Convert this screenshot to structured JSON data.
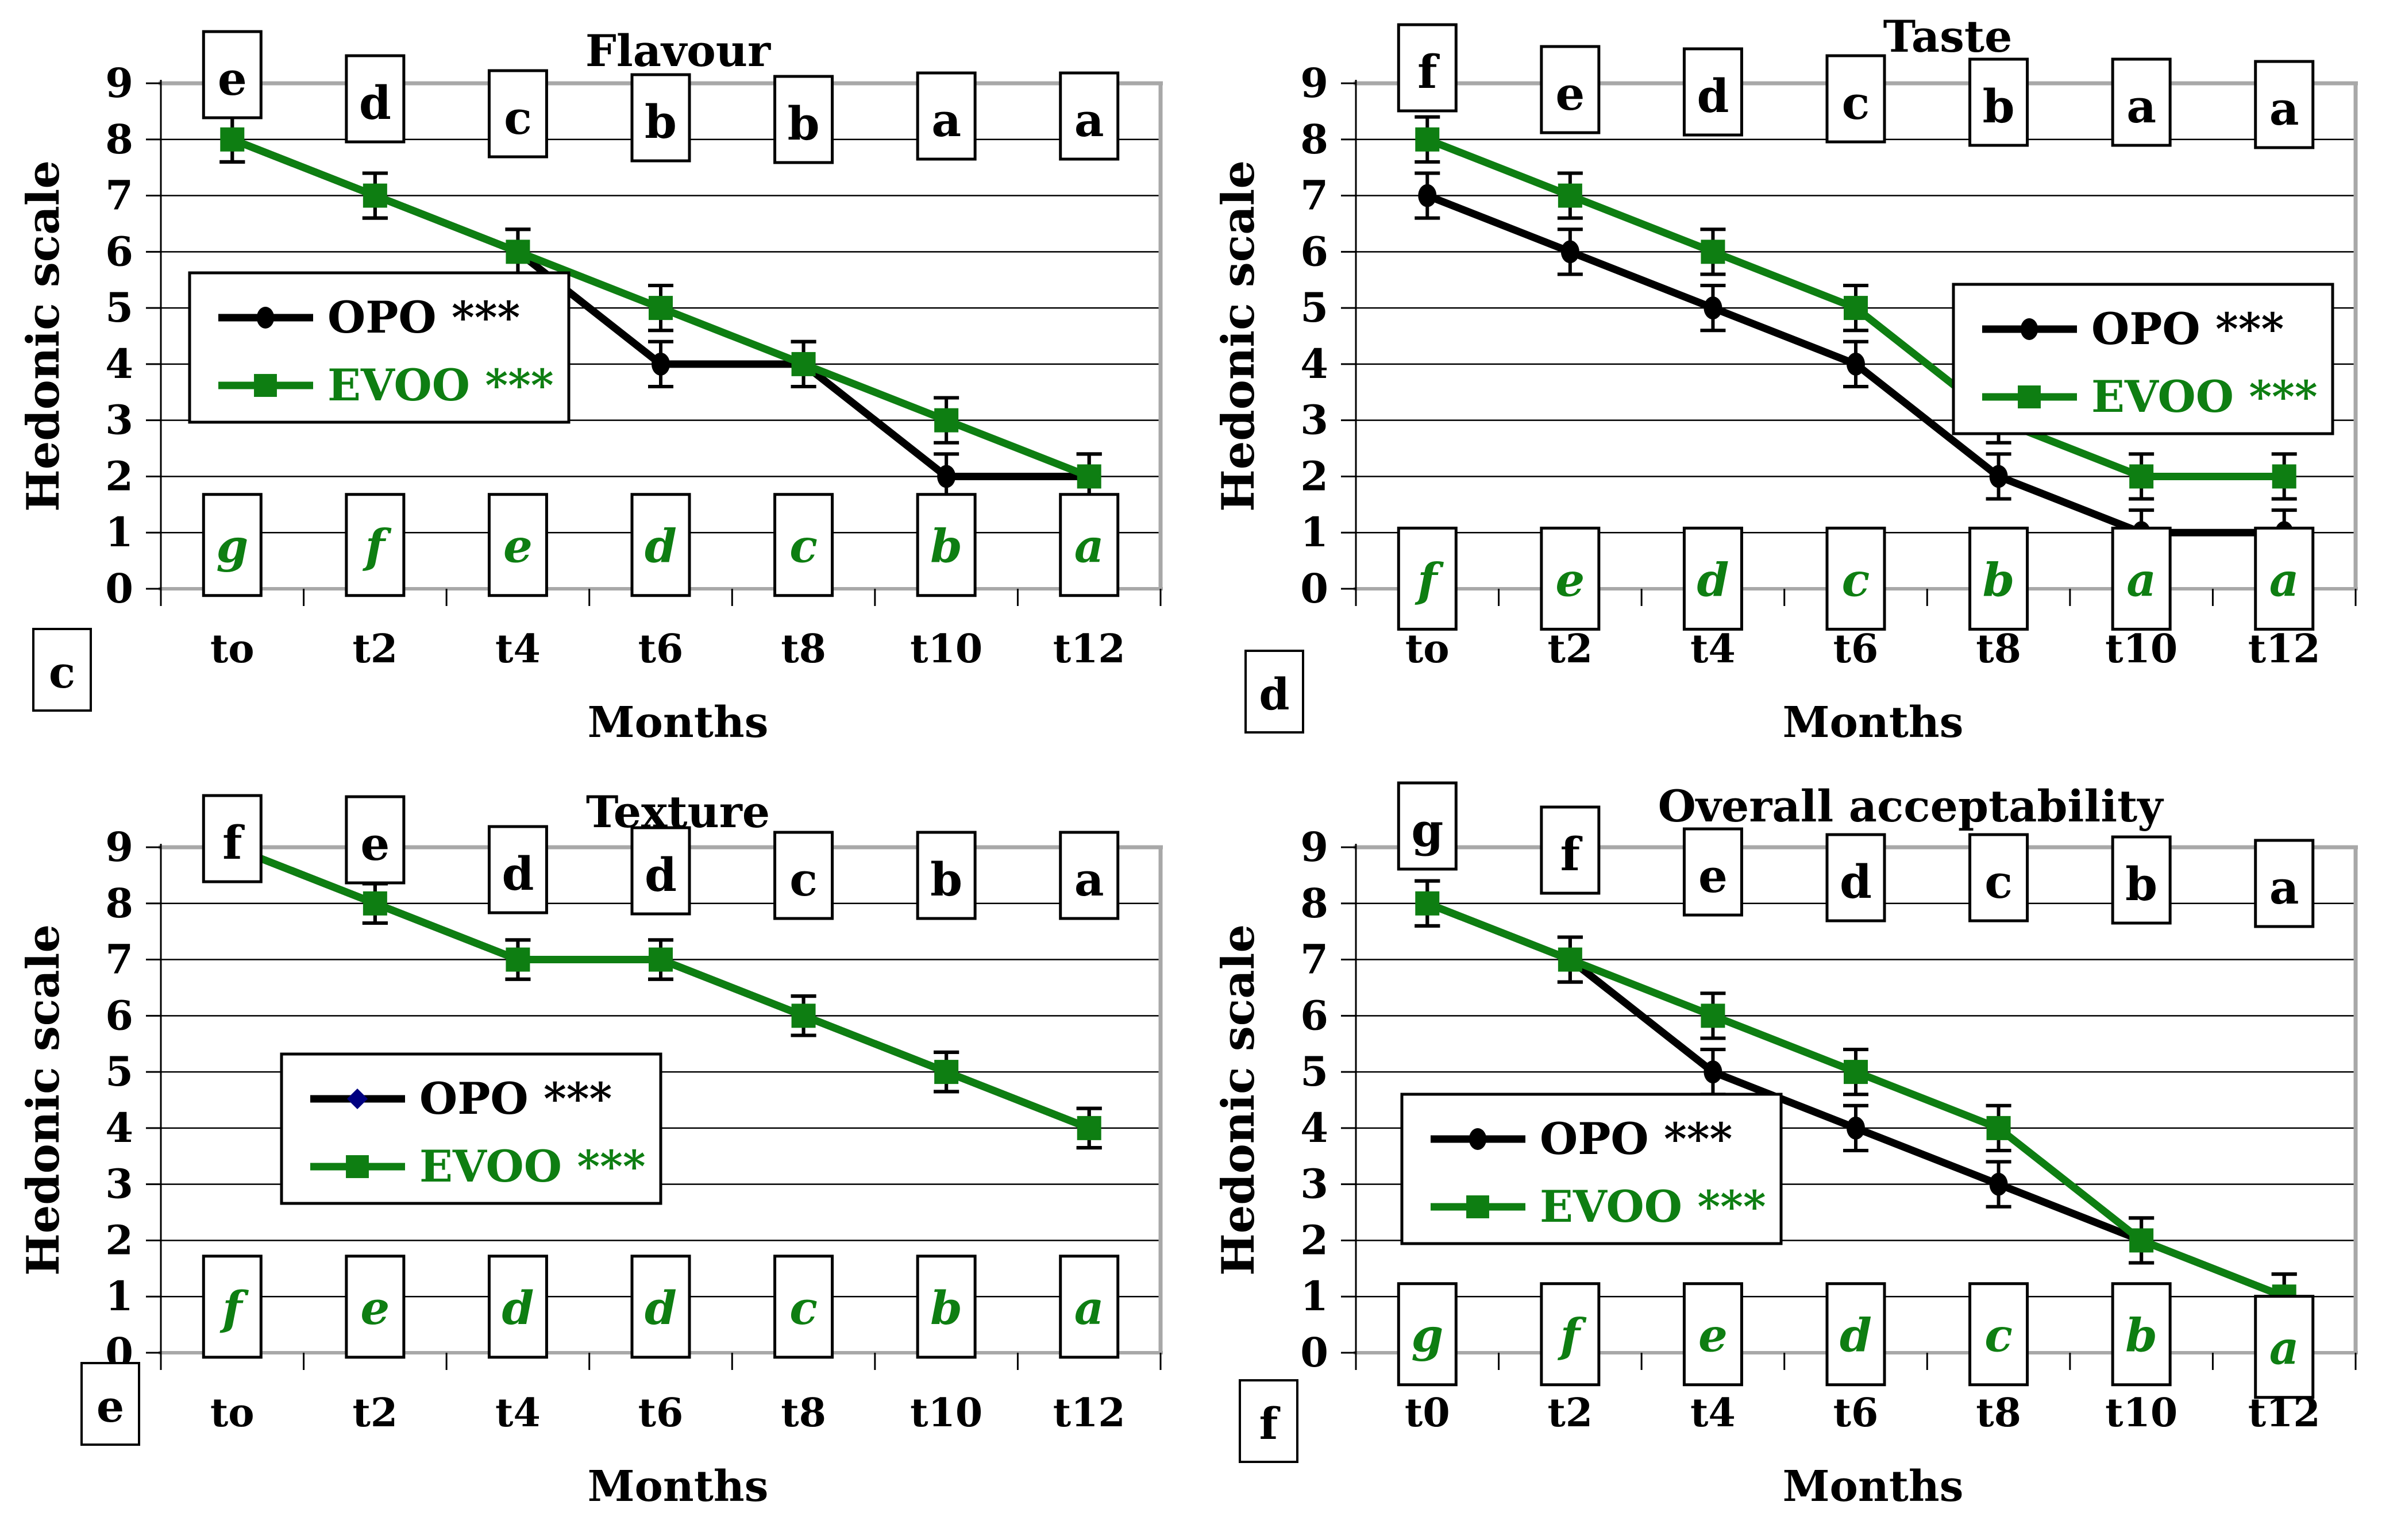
{
  "colors": {
    "background": "#ffffff",
    "opo_line": "#000000",
    "evoo_line": "#0e7e12",
    "texture_opo_marker": "#000080",
    "frame_gray": "#a8a8a8",
    "grid_black": "#000000",
    "letter_green": "#0e7e12"
  },
  "axis_shared": {
    "y_title": "Hedonic scale",
    "x_title": "Months",
    "y_ticks": [
      0,
      1,
      2,
      3,
      4,
      5,
      6,
      7,
      8,
      9
    ],
    "ylim": [
      0,
      9
    ]
  },
  "legend_labels": {
    "opo": "OPO ***",
    "evoo": "EVOO ***"
  },
  "chart_data": [
    {
      "type": "line",
      "panel_label": "c",
      "title": "Flavour",
      "xlabel": "Months",
      "ylabel": "Hedonic scale",
      "ylim": [
        0,
        9
      ],
      "grid": true,
      "categories": [
        "to",
        "t2",
        "t4",
        "t6",
        "t8",
        "t10",
        "t12"
      ],
      "series": [
        {
          "name": "OPO ***",
          "marker": "circle",
          "marker_color": "#000000",
          "line_color": "#000000",
          "values": [
            8,
            7,
            6,
            4,
            4,
            2,
            2
          ]
        },
        {
          "name": "EVOO ***",
          "marker": "square",
          "marker_color": "#0e7e12",
          "line_color": "#0e7e12",
          "values": [
            8,
            7,
            6,
            5,
            4,
            3,
            2
          ]
        }
      ],
      "error_bar": 0.4,
      "top_letters": [
        "e",
        "d",
        "c",
        "b",
        "b",
        "a",
        "a"
      ],
      "bottom_letters": [
        "g",
        "f",
        "e",
        "d",
        "c",
        "b",
        "a"
      ],
      "legend_position": "left-middle"
    },
    {
      "type": "line",
      "panel_label": "d",
      "title": "Taste",
      "xlabel": "Months",
      "ylabel": "Hedonic scale",
      "ylim": [
        0,
        9
      ],
      "grid": true,
      "categories": [
        "to",
        "t2",
        "t4",
        "t6",
        "t8",
        "t10",
        "t12"
      ],
      "series": [
        {
          "name": "OPO ***",
          "marker": "circle",
          "marker_color": "#000000",
          "line_color": "#000000",
          "values": [
            7,
            6,
            5,
            4,
            2,
            1,
            1
          ]
        },
        {
          "name": "EVOO ***",
          "marker": "square",
          "marker_color": "#0e7e12",
          "line_color": "#0e7e12",
          "values": [
            8,
            7,
            6,
            5,
            3,
            2,
            2
          ]
        }
      ],
      "error_bar": 0.4,
      "top_letters": [
        "f",
        "e",
        "d",
        "c",
        "b",
        "a",
        "a"
      ],
      "bottom_letters": [
        "f",
        "e",
        "d",
        "c",
        "b",
        "a",
        "a"
      ],
      "legend_position": "right-middle"
    },
    {
      "type": "line",
      "panel_label": "e",
      "title": "Texture",
      "xlabel": "Months",
      "ylabel": "Hedonic scale",
      "ylim": [
        0,
        9
      ],
      "grid": true,
      "categories": [
        "to",
        "t2",
        "t4",
        "t6",
        "t8",
        "t10",
        "t12"
      ],
      "series": [
        {
          "name": "OPO ***",
          "marker": "diamond",
          "marker_color": "#000080",
          "line_color": "#000000",
          "values": [
            9,
            8,
            7,
            7,
            6,
            5,
            4
          ]
        },
        {
          "name": "EVOO ***",
          "marker": "square",
          "marker_color": "#0e7e12",
          "line_color": "#0e7e12",
          "values": [
            9,
            8,
            7,
            7,
            6,
            5,
            4
          ]
        }
      ],
      "error_bar": 0.35,
      "top_letters": [
        "f",
        "e",
        "d",
        "d",
        "c",
        "b",
        "a"
      ],
      "bottom_letters": [
        "f",
        "e",
        "d",
        "d",
        "c",
        "b",
        "a"
      ],
      "legend_position": "left-middle"
    },
    {
      "type": "line",
      "panel_label": "f",
      "title": "Overall acceptability",
      "xlabel": "Months",
      "ylabel": "Hedonic scale",
      "ylim": [
        0,
        9
      ],
      "grid": true,
      "categories": [
        "t0",
        "t2",
        "t4",
        "t6",
        "t8",
        "t10",
        "t12"
      ],
      "series": [
        {
          "name": "OPO ***",
          "marker": "circle",
          "marker_color": "#000000",
          "line_color": "#000000",
          "values": [
            8,
            7,
            5,
            4,
            3,
            2,
            1
          ]
        },
        {
          "name": "EVOO ***",
          "marker": "square",
          "marker_color": "#0e7e12",
          "line_color": "#0e7e12",
          "values": [
            8,
            7,
            6,
            5,
            4,
            2,
            1
          ]
        }
      ],
      "error_bar": 0.4,
      "top_letters": [
        "g",
        "f",
        "e",
        "d",
        "c",
        "b",
        "a"
      ],
      "bottom_letters": [
        "g",
        "f",
        "e",
        "d",
        "c",
        "b",
        "a"
      ],
      "legend_position": "left-middle"
    }
  ]
}
